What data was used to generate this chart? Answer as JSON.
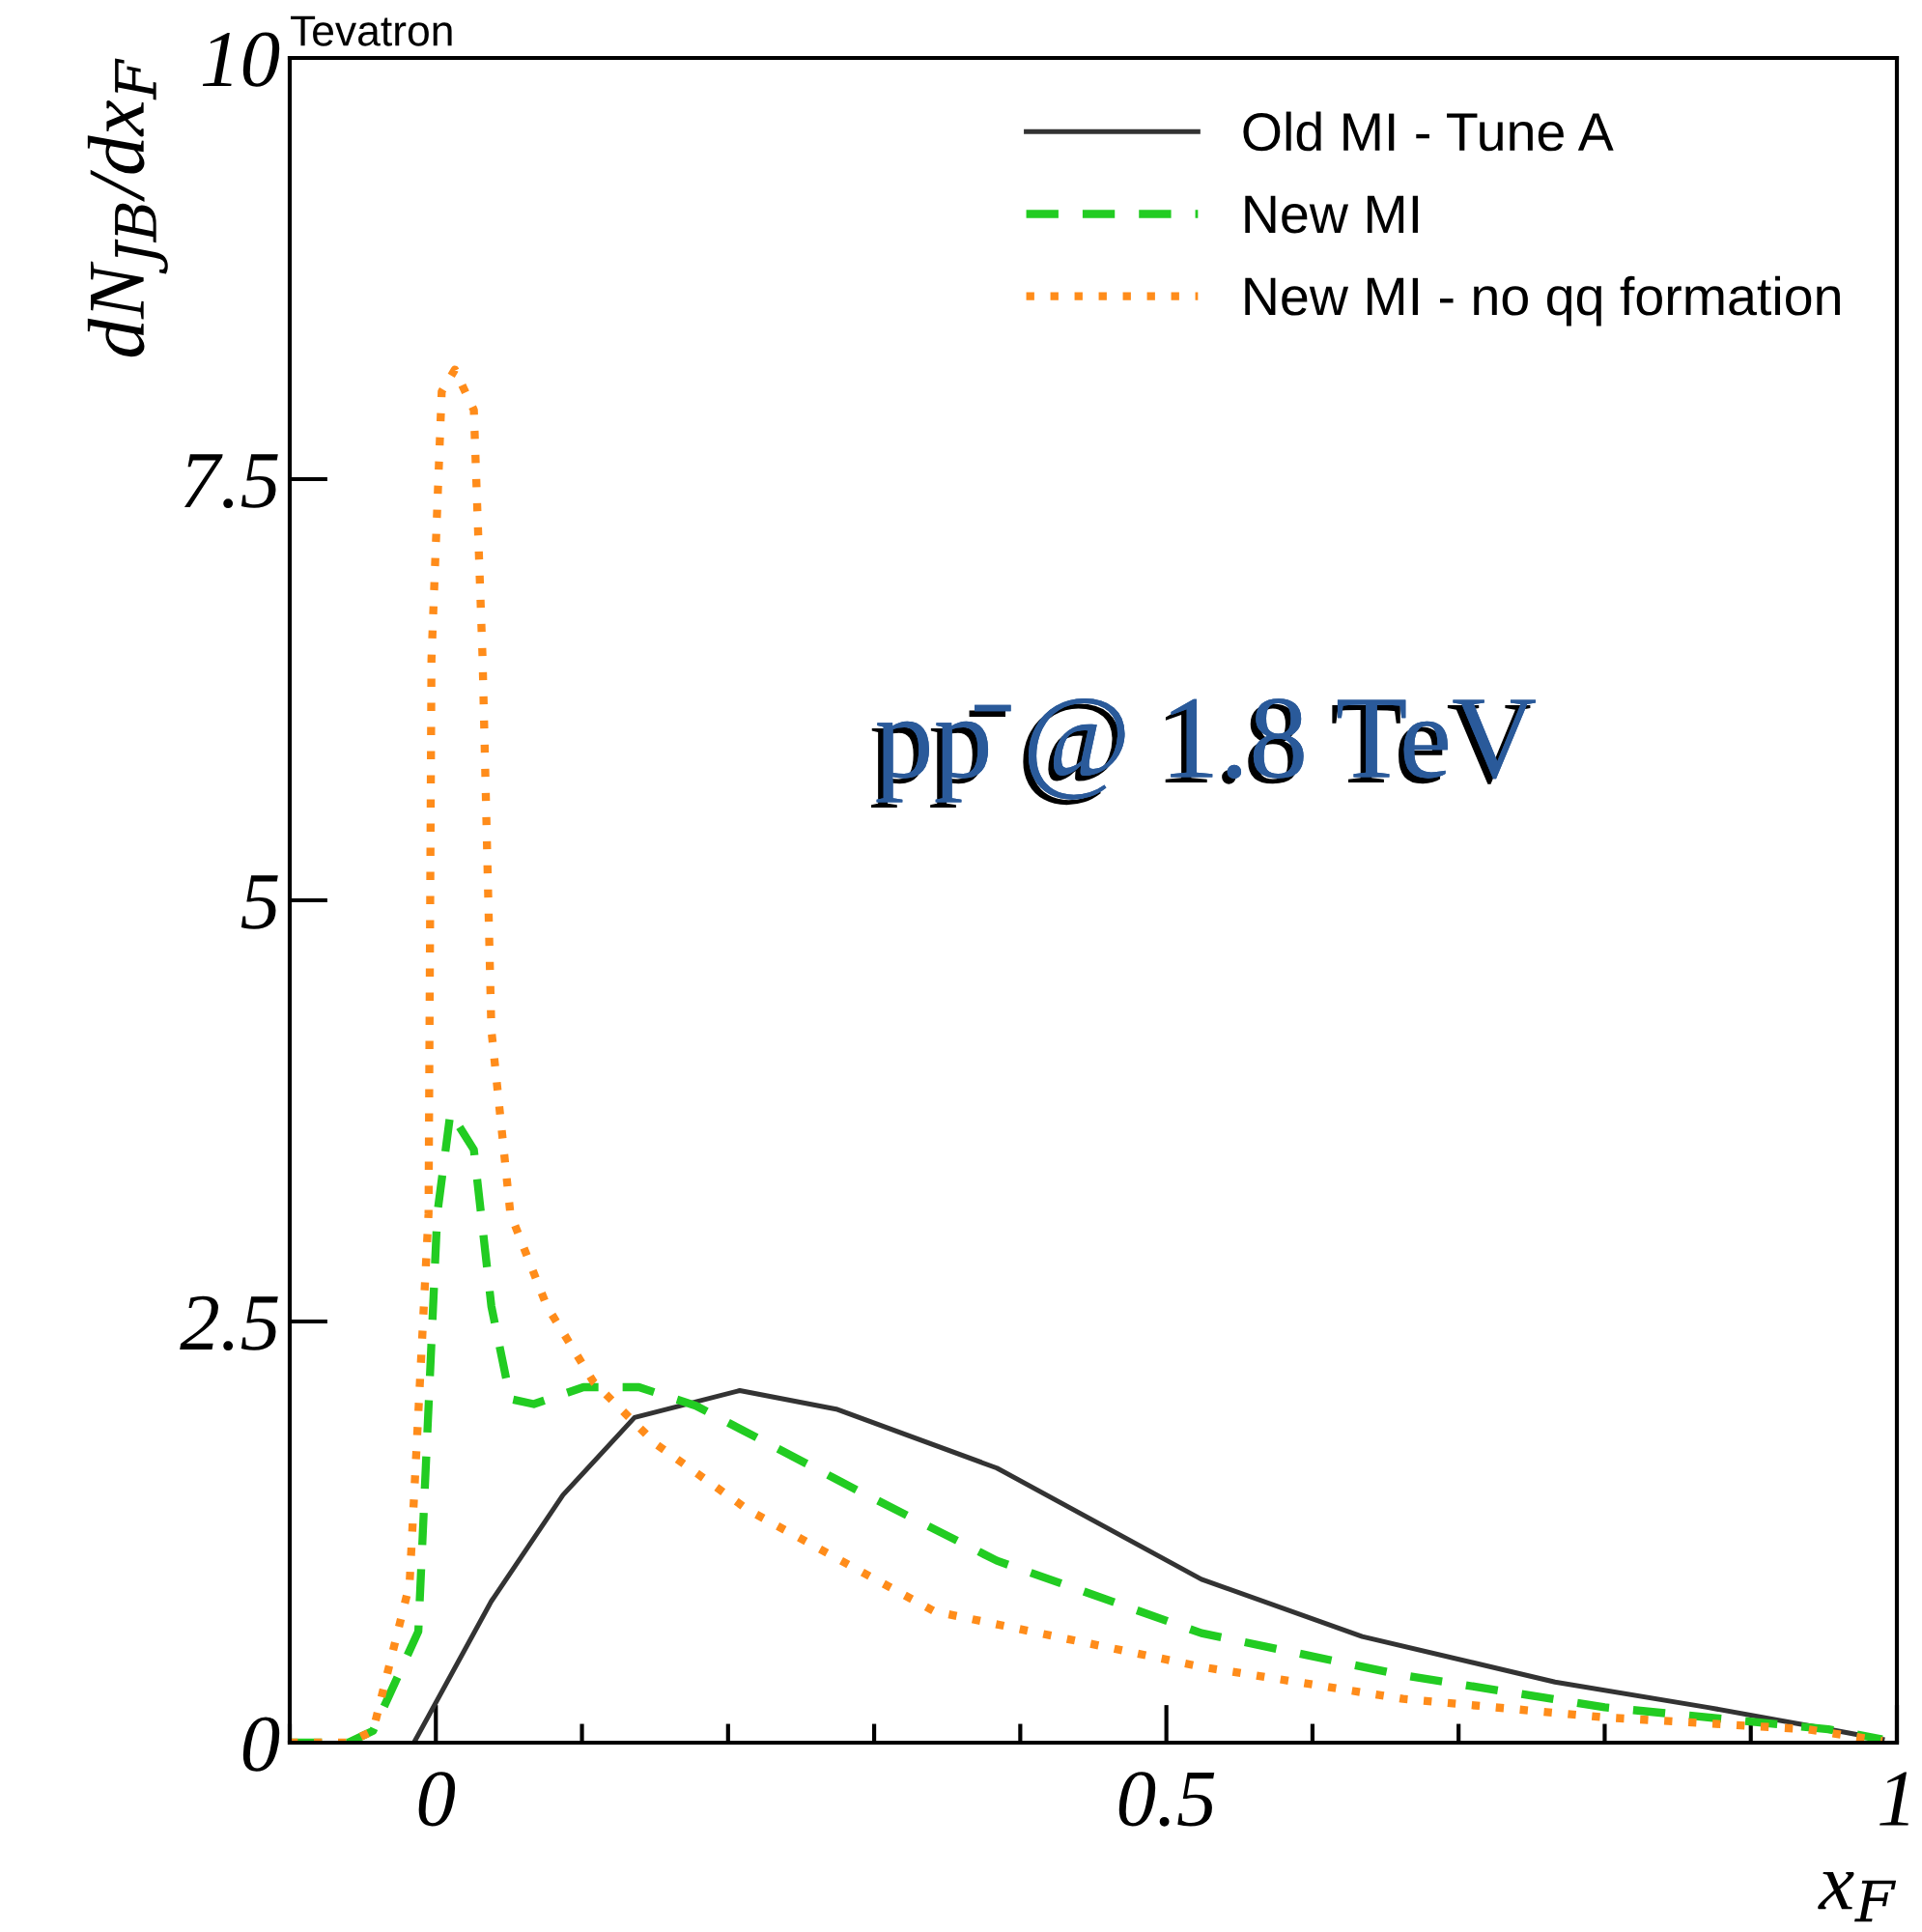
{
  "chart_data": {
    "type": "line",
    "xlabel": "x$_{F}$",
    "ylabel": "dN$_{JB}$/dx$_{F}$",
    "annotations": [
      "Tevatron",
      "pp̄ @ 1.8 TeV"
    ],
    "xlim": [
      -0.1,
      1.0
    ],
    "ylim": [
      0,
      10
    ],
    "xticks": [
      0,
      0.5,
      1
    ],
    "yticks": [
      0,
      2.5,
      5,
      7.5,
      10
    ],
    "legend": "top right",
    "grid": false,
    "series": [
      {
        "name": "Old MI - Tune A",
        "color": "#333333",
        "line_style": "solid",
        "x": [
          -0.015,
          0.038,
          0.087,
          0.136,
          0.208,
          0.274,
          0.384,
          0.524,
          0.634,
          0.766,
          0.87,
          0.953,
          0.99
        ],
        "values": [
          0,
          0.84,
          1.47,
          1.93,
          2.09,
          1.98,
          1.63,
          0.97,
          0.63,
          0.36,
          0.21,
          0.08,
          0.02
        ]
      },
      {
        "name": "New MI",
        "color": "#22cc22",
        "line_style": "dashed",
        "x": [
          -0.1,
          -0.06,
          -0.043,
          -0.012,
          0.001,
          0.01,
          0.026,
          0.038,
          0.051,
          0.067,
          0.101,
          0.139,
          0.178,
          0.288,
          0.384,
          0.524,
          0.662,
          0.8,
          0.953,
          0.99
        ],
        "values": [
          0,
          0,
          0.07,
          0.66,
          3.14,
          3.74,
          3.52,
          2.59,
          2.04,
          2.01,
          2.11,
          2.11,
          2.0,
          1.5,
          1.08,
          0.65,
          0.4,
          0.21,
          0.08,
          0.02
        ]
      },
      {
        "name": "New MI - no qq formation",
        "color": "#ff8c1a",
        "line_style": "dotted",
        "x": [
          -0.1,
          -0.06,
          -0.043,
          -0.018,
          -0.005,
          -0.003,
          0.004,
          0.013,
          0.026,
          0.032,
          0.038,
          0.051,
          0.076,
          0.108,
          0.151,
          0.214,
          0.341,
          0.524,
          0.662,
          0.8,
          0.938,
          0.99
        ],
        "values": [
          0,
          0,
          0.07,
          0.94,
          3.14,
          6.43,
          8.02,
          8.15,
          7.91,
          6.43,
          4.23,
          3.14,
          2.59,
          2.14,
          1.77,
          1.38,
          0.78,
          0.45,
          0.26,
          0.15,
          0.08,
          0.01
        ]
      }
    ]
  }
}
